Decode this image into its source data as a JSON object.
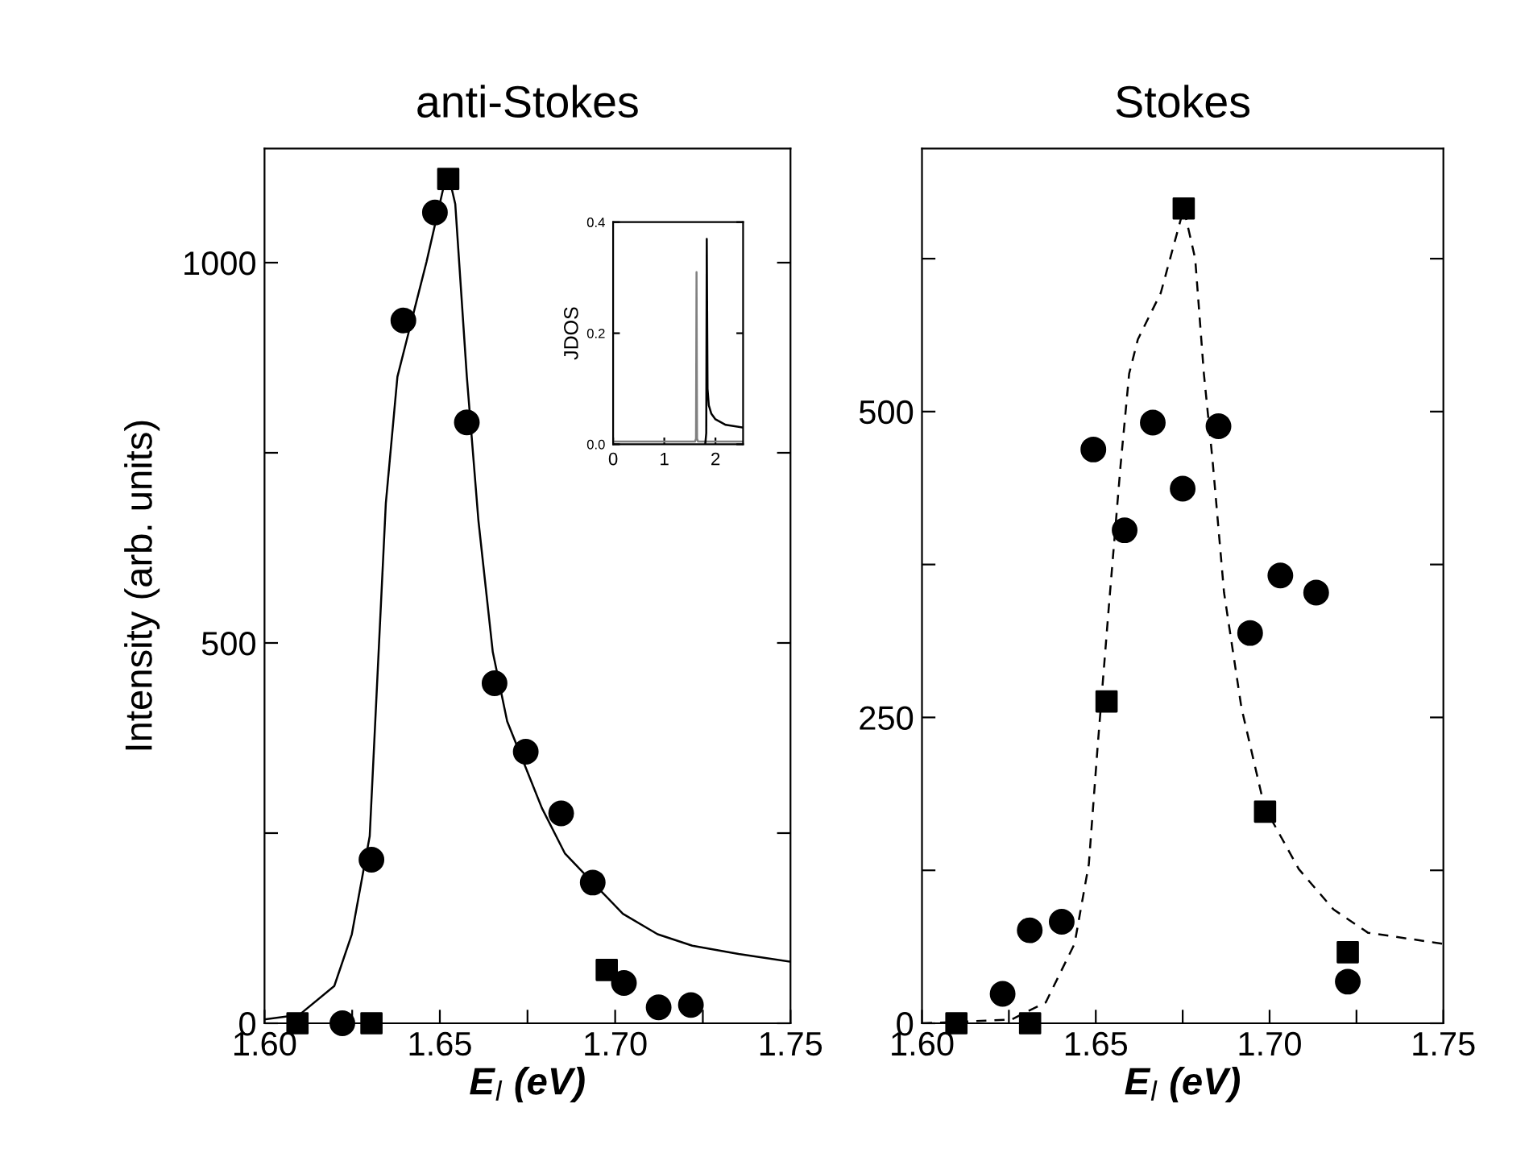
{
  "chart_data": [
    {
      "type": "scatter",
      "title": "anti-Stokes",
      "xlabel": "E$_{l}$ (eV)",
      "ylabel": "Intensity (arb. units)",
      "xlim": [
        1.6,
        1.75
      ],
      "ylim": [
        0,
        1150
      ],
      "xticks": [
        {
          "value": 1.6,
          "label": "1.60"
        },
        {
          "value": 1.625,
          "label": null
        },
        {
          "value": 1.65,
          "label": "1.65"
        },
        {
          "value": 1.675,
          "label": null
        },
        {
          "value": 1.7,
          "label": "1.70"
        },
        {
          "value": 1.725,
          "label": null
        },
        {
          "value": 1.75,
          "label": "1.75"
        }
      ],
      "yticks": [
        0,
        {
          "value": 250,
          "label": null
        },
        500,
        {
          "value": 750,
          "label": null
        },
        1000
      ],
      "grid": false,
      "legend": false,
      "series": [
        {
          "type": "line",
          "color": "#000000",
          "line_style": "solid",
          "marker": "none",
          "x": [
            1.6,
            1.6099,
            1.6199,
            1.6249,
            1.63,
            1.6346,
            1.6379,
            1.6429,
            1.6462,
            1.6511,
            1.6527,
            1.6544,
            1.6577,
            1.661,
            1.6651,
            1.6692,
            1.6745,
            1.6791,
            1.6857,
            1.6936,
            1.7022,
            1.7121,
            1.722,
            1.7352,
            1.75
          ],
          "values": [
            5,
            11,
            49,
            117,
            246,
            684,
            850,
            941,
            1001,
            1100,
            1111,
            1077,
            850,
            661,
            488,
            397,
            336,
            283,
            223,
            185,
            144,
            117,
            102,
            91,
            81
          ]
        },
        {
          "type": "scatter",
          "color": "#000000",
          "marker": "square",
          "x": [
            1.6094,
            1.6305,
            1.6524,
            1.6976
          ],
          "values": [
            0,
            0,
            1110,
            70
          ]
        },
        {
          "type": "scatter",
          "color": "#000000",
          "marker": "circle",
          "x": [
            1.6222,
            1.6305,
            1.6396,
            1.6486,
            1.6577,
            1.6656,
            1.6745,
            1.6846,
            1.6936,
            1.7025,
            1.7124,
            1.7216
          ],
          "values": [
            0,
            215,
            924,
            1066,
            790,
            447,
            357,
            276,
            185,
            53,
            21,
            24
          ]
        }
      ]
    },
    {
      "type": "scatter",
      "title": "Stokes",
      "xlabel": "E$_{l}$ (eV)",
      "xlim": [
        1.6,
        1.75
      ],
      "ylim": [
        0,
        715
      ],
      "xticks": [
        {
          "value": 1.6,
          "label": "1.60"
        },
        {
          "value": 1.625,
          "label": null
        },
        {
          "value": 1.65,
          "label": "1.65"
        },
        {
          "value": 1.675,
          "label": null
        },
        {
          "value": 1.7,
          "label": "1.70"
        },
        {
          "value": 1.725,
          "label": null
        },
        {
          "value": 1.75,
          "label": "1.75"
        }
      ],
      "yticks": [
        0,
        {
          "value": 125,
          "label": null
        },
        250,
        {
          "value": 375,
          "label": null
        },
        500,
        {
          "value": 625,
          "label": null
        }
      ],
      "grid": false,
      "legend": false,
      "series": [
        {
          "type": "line",
          "color": "#000000",
          "line_style": "dashed",
          "marker": "none",
          "x": [
            1.6,
            1.6091,
            1.6257,
            1.6356,
            1.6439,
            1.648,
            1.6505,
            1.6538,
            1.6571,
            1.6596,
            1.6621,
            1.6687,
            1.6753,
            1.6786,
            1.6811,
            1.6836,
            1.6869,
            1.6919,
            1.6985,
            1.7084,
            1.7184,
            1.7283,
            1.7498
          ],
          "values": [
            0,
            1,
            3,
            17,
            65,
            130,
            225,
            342,
            455,
            531,
            559,
            597,
            666,
            625,
            531,
            460,
            352,
            258,
            177,
            126,
            93,
            74,
            65
          ]
        },
        {
          "type": "scatter",
          "color": "#000000",
          "marker": "square",
          "x": [
            1.6099,
            1.6311,
            1.6531,
            1.6753,
            1.6987,
            1.7225
          ],
          "values": [
            0,
            0,
            263,
            666,
            173,
            58
          ]
        },
        {
          "type": "scatter",
          "color": "#000000",
          "marker": "circle",
          "x": [
            1.6232,
            1.631,
            1.6402,
            1.6493,
            1.6583,
            1.6664,
            1.675,
            1.6853,
            1.6944,
            1.7031,
            1.7134,
            1.7225
          ],
          "values": [
            24,
            76,
            83,
            469,
            403,
            491,
            437,
            488,
            319,
            366,
            352,
            34
          ]
        }
      ]
    },
    {
      "type": "line",
      "ylabel": "JDOS",
      "xlim": [
        0,
        2.54
      ],
      "ylim": [
        0,
        0.4
      ],
      "xticks": [
        0,
        1,
        2
      ],
      "yticks": [
        {
          "value": 0,
          "label": "0.0"
        },
        {
          "value": 0.2,
          "label": "0.2"
        },
        {
          "value": 0.4,
          "label": "0.4"
        }
      ],
      "grid": false,
      "legend": false,
      "series": [
        {
          "color": "#808080",
          "line_style": "solid",
          "marker": "none",
          "x": [
            0,
            1.6,
            1.62,
            1.63,
            1.64,
            1.66,
            2.54
          ],
          "values": [
            0.005,
            0.005,
            0.01,
            0.31,
            0.01,
            0.005,
            0.005
          ]
        },
        {
          "color": "#000000",
          "line_style": "solid",
          "marker": "none",
          "x": [
            1.8,
            1.82,
            1.83,
            1.845,
            1.87,
            1.92,
            2.0,
            2.2,
            2.54
          ],
          "values": [
            0.0,
            0.02,
            0.37,
            0.1,
            0.07,
            0.055,
            0.045,
            0.035,
            0.03
          ]
        }
      ]
    }
  ]
}
